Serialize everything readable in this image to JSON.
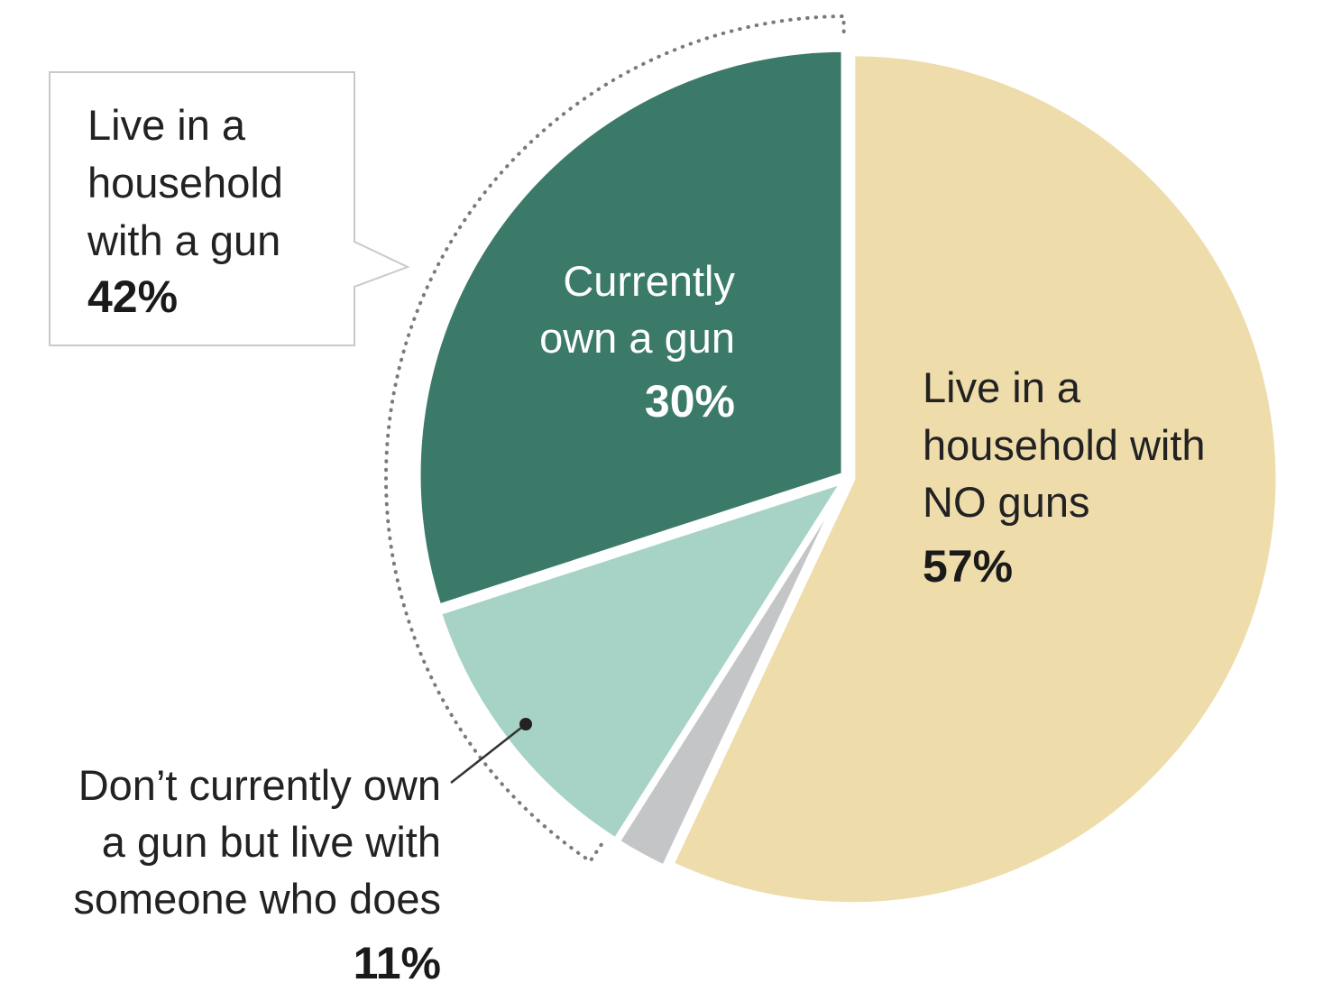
{
  "chart_data": {
    "type": "pie",
    "start_angle_deg": 0,
    "direction": "counterclockwise",
    "slices": [
      {
        "key": "no_guns",
        "value": 57,
        "label_lines": [
          "Live in a",
          "household with",
          "NO guns"
        ],
        "value_label": "57%",
        "color": "#eedcab"
      },
      {
        "key": "unlabeled",
        "value": 2,
        "color": "#c4c5c7"
      },
      {
        "key": "live_with_owner",
        "value": 11,
        "label_lines": [
          "Don’t currently own",
          "a gun but live with",
          "someone who does"
        ],
        "value_label": "11%",
        "color": "#a6d3c6"
      },
      {
        "key": "own_gun",
        "value": 30,
        "label_lines": [
          "Currently",
          "own a gun"
        ],
        "value_label": "30%",
        "color": "#3b7a69"
      }
    ],
    "group_callout": {
      "label_lines": [
        "Live in a",
        "household",
        "with a gun"
      ],
      "value_label": "42%",
      "covers": [
        "own_gun",
        "live_with_owner"
      ]
    }
  }
}
